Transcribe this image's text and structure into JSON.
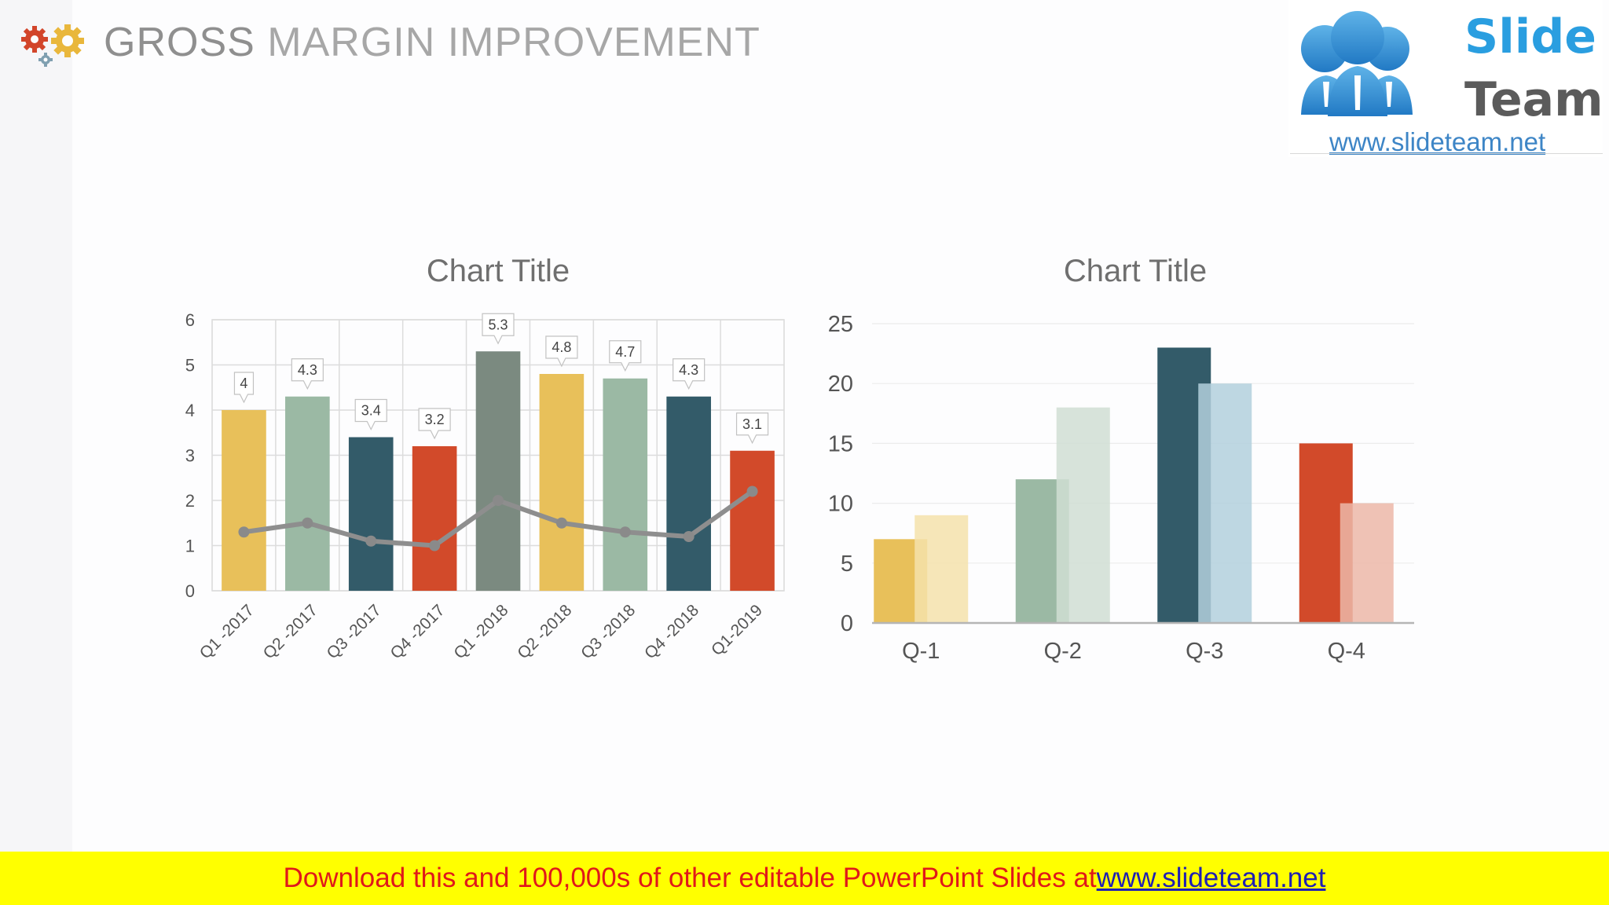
{
  "header": {
    "title_first": "GROSS",
    "title_rest": "MARGIN IMPROVEMENT"
  },
  "logo": {
    "word1": "Slide",
    "word2": "Team",
    "url": "www.slideteam.net"
  },
  "footer": {
    "text": "Download this and 100,000s of other editable PowerPoint Slides at ",
    "link": "www.slideteam.net"
  },
  "colors": {
    "mustard": "#e8c05a",
    "sage": "#9bb9a4",
    "teal": "#335b69",
    "red": "#d24a2a",
    "slate": "#7b8a80",
    "line": "#8e8e8e"
  },
  "chart_data": [
    {
      "type": "bar",
      "title": "Chart Title",
      "categories": [
        "Q1 -2017",
        "Q2 -2017",
        "Q3 -2017",
        "Q4 -2017",
        "Q1 -2018",
        "Q2 -2018",
        "Q3 -2018",
        "Q4 -2018",
        "Q1-2019"
      ],
      "series": [
        {
          "values": [
            4,
            4.3,
            3.4,
            3.2,
            5.3,
            4.8,
            4.7,
            4.3,
            3.1
          ],
          "colors": [
            "#e8c05a",
            "#9bb9a4",
            "#335b69",
            "#d24a2a",
            "#7b8a80",
            "#e8c05a",
            "#9bb9a4",
            "#335b69",
            "#d24a2a"
          ]
        },
        {
          "type": "line",
          "values": [
            1.3,
            1.5,
            1.1,
            1.0,
            2.0,
            1.5,
            1.3,
            1.2,
            2.2
          ],
          "color": "#8e8e8e"
        }
      ],
      "data_labels": [
        "4",
        "4.3",
        "3.4",
        "3.2",
        "5.3",
        "4.8",
        "4.7",
        "4.3",
        "3.1"
      ],
      "yticks": [
        "0",
        "1",
        "2",
        "3",
        "4",
        "5",
        "6"
      ],
      "ylim": [
        0,
        6
      ],
      "grid": true
    },
    {
      "type": "bar",
      "title": "Chart Title",
      "categories": [
        "Q-1",
        "Q-2",
        "Q-3",
        "Q-4"
      ],
      "series": [
        {
          "values": [
            7,
            12,
            23,
            15
          ],
          "colors": [
            "#e8c05a",
            "#9bb9a4",
            "#335b69",
            "#d24a2a"
          ]
        },
        {
          "values": [
            9,
            18,
            20,
            10
          ],
          "colors": [
            "#f4e2ac",
            "#d0ded3",
            "#b3d0dd",
            "#ecb7a8"
          ],
          "opacity": 0.85
        }
      ],
      "yticks": [
        "0",
        "5",
        "10",
        "15",
        "20",
        "25"
      ],
      "ylim": [
        0,
        25
      ],
      "grid": true
    }
  ]
}
